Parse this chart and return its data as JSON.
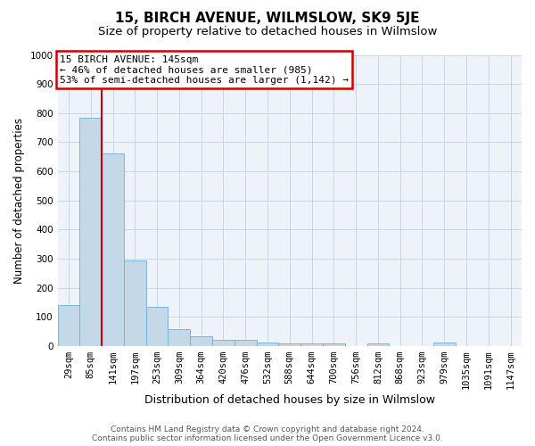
{
  "title": "15, BIRCH AVENUE, WILMSLOW, SK9 5JE",
  "subtitle": "Size of property relative to detached houses in Wilmslow",
  "xlabel": "Distribution of detached houses by size in Wilmslow",
  "ylabel": "Number of detached properties",
  "bar_labels": [
    "29sqm",
    "85sqm",
    "141sqm",
    "197sqm",
    "253sqm",
    "309sqm",
    "364sqm",
    "420sqm",
    "476sqm",
    "532sqm",
    "588sqm",
    "644sqm",
    "700sqm",
    "756sqm",
    "812sqm",
    "868sqm",
    "923sqm",
    "979sqm",
    "1035sqm",
    "1091sqm",
    "1147sqm"
  ],
  "bar_values": [
    140,
    785,
    660,
    295,
    133,
    57,
    32,
    20,
    20,
    13,
    8,
    8,
    8,
    0,
    8,
    0,
    0,
    12,
    0,
    0,
    0
  ],
  "bar_color": "#c5d8e8",
  "bar_edge_color": "#6baed6",
  "vline_index": 2,
  "vline_color": "#cc0000",
  "ylim": [
    0,
    1000
  ],
  "yticks": [
    0,
    100,
    200,
    300,
    400,
    500,
    600,
    700,
    800,
    900,
    1000
  ],
  "annotation_text": "15 BIRCH AVENUE: 145sqm\n← 46% of detached houses are smaller (985)\n53% of semi-detached houses are larger (1,142) →",
  "annotation_box_edgecolor": "#cc0000",
  "footer_line1": "Contains HM Land Registry data © Crown copyright and database right 2024.",
  "footer_line2": "Contains public sector information licensed under the Open Government Licence v3.0.",
  "bg_color": "#ffffff",
  "plot_bg_color": "#edf3f9",
  "grid_color": "#c8d8e8",
  "title_fontsize": 11,
  "subtitle_fontsize": 9.5,
  "xlabel_fontsize": 9,
  "ylabel_fontsize": 8.5,
  "tick_fontsize": 7.5,
  "annotation_fontsize": 8,
  "footer_fontsize": 6.5
}
